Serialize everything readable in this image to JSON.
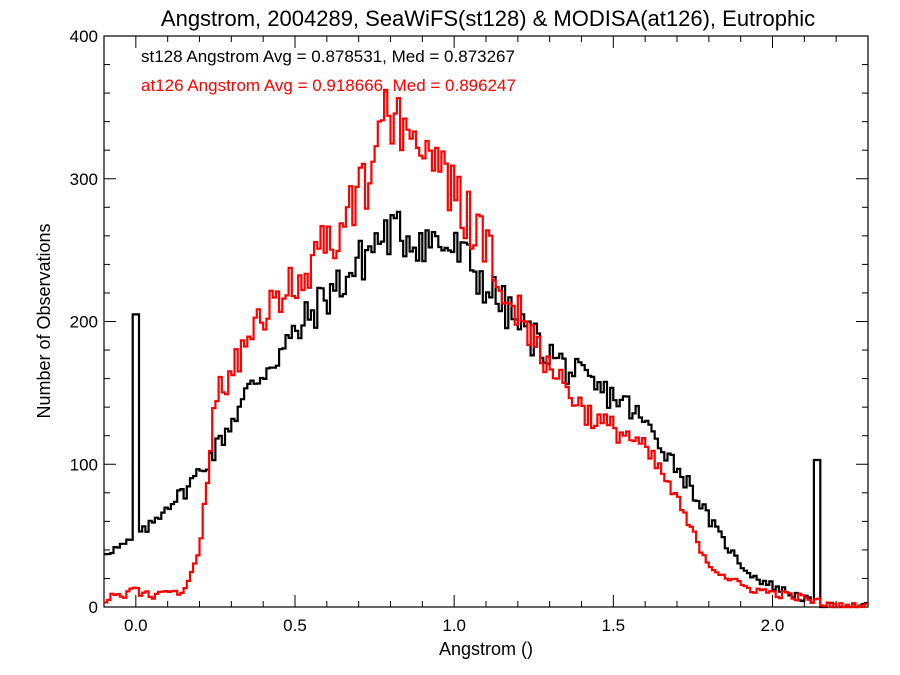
{
  "chart_data": {
    "type": "histogram",
    "title": "Angstrom, 2004289, SeaWiFS(st128) & MODISA(at126), Eutrophic",
    "xlabel": "Angstrom ()",
    "ylabel": "Number of Observations",
    "xlim": [
      -0.1,
      2.3
    ],
    "ylim": [
      0,
      400
    ],
    "xticks": [
      0.0,
      0.5,
      1.0,
      1.5,
      2.0
    ],
    "xtick_labels": [
      "0.0",
      "0.5",
      "1.0",
      "1.5",
      "2.0"
    ],
    "yticks": [
      0,
      100,
      200,
      300,
      400
    ],
    "ytick_labels": [
      "0",
      "100",
      "200",
      "300",
      "400"
    ],
    "grid": false,
    "bin_width": 0.01,
    "annotations": [
      {
        "text": "st128 Angstrom Avg = 0.878531, Med = 0.873267",
        "color": "#000000"
      },
      {
        "text": "at126 Angstrom Avg = 0.918666, Med = 0.896247",
        "color": "#ff0000"
      }
    ],
    "series": [
      {
        "color": "#000000",
        "x": [
          -0.1,
          -0.05,
          0.0,
          0.05,
          0.1,
          0.15,
          0.2,
          0.25,
          0.3,
          0.35,
          0.4,
          0.45,
          0.5,
          0.55,
          0.6,
          0.65,
          0.7,
          0.75,
          0.8,
          0.85,
          0.9,
          0.95,
          1.0,
          1.05,
          1.1,
          1.15,
          1.2,
          1.25,
          1.3,
          1.35,
          1.4,
          1.45,
          1.5,
          1.55,
          1.6,
          1.65,
          1.7,
          1.75,
          1.8,
          1.85,
          1.9,
          1.95,
          2.0,
          2.05,
          2.1,
          2.15,
          2.2,
          2.3
        ],
        "y": [
          38,
          42,
          48,
          58,
          72,
          80,
          95,
          110,
          130,
          150,
          165,
          178,
          190,
          205,
          218,
          228,
          240,
          255,
          262,
          260,
          258,
          255,
          250,
          240,
          225,
          212,
          198,
          188,
          178,
          168,
          160,
          152,
          148,
          140,
          128,
          115,
          98,
          82,
          62,
          45,
          30,
          20,
          15,
          10,
          6,
          0,
          0,
          0
        ],
        "spikes": [
          {
            "x": 0.0,
            "y": 205
          },
          {
            "x": 2.14,
            "y": 103
          }
        ]
      },
      {
        "color": "#ff0000",
        "x": [
          -0.1,
          -0.05,
          0.0,
          0.05,
          0.1,
          0.15,
          0.2,
          0.25,
          0.3,
          0.35,
          0.4,
          0.45,
          0.5,
          0.55,
          0.6,
          0.65,
          0.7,
          0.75,
          0.8,
          0.85,
          0.9,
          0.95,
          1.0,
          1.05,
          1.1,
          1.15,
          1.2,
          1.25,
          1.3,
          1.35,
          1.4,
          1.45,
          1.5,
          1.55,
          1.6,
          1.65,
          1.7,
          1.75,
          1.8,
          1.85,
          1.9,
          1.95,
          2.0,
          2.05,
          2.1,
          2.15,
          2.2,
          2.3
        ],
        "y": [
          5,
          8,
          12,
          8,
          10,
          12,
          40,
          145,
          165,
          185,
          200,
          215,
          225,
          240,
          255,
          268,
          285,
          315,
          350,
          340,
          325,
          305,
          290,
          270,
          250,
          230,
          210,
          190,
          170,
          155,
          140,
          130,
          125,
          120,
          110,
          95,
          75,
          52,
          30,
          22,
          15,
          12,
          10,
          8,
          6,
          3,
          0,
          0
        ],
        "spikes": []
      }
    ]
  }
}
